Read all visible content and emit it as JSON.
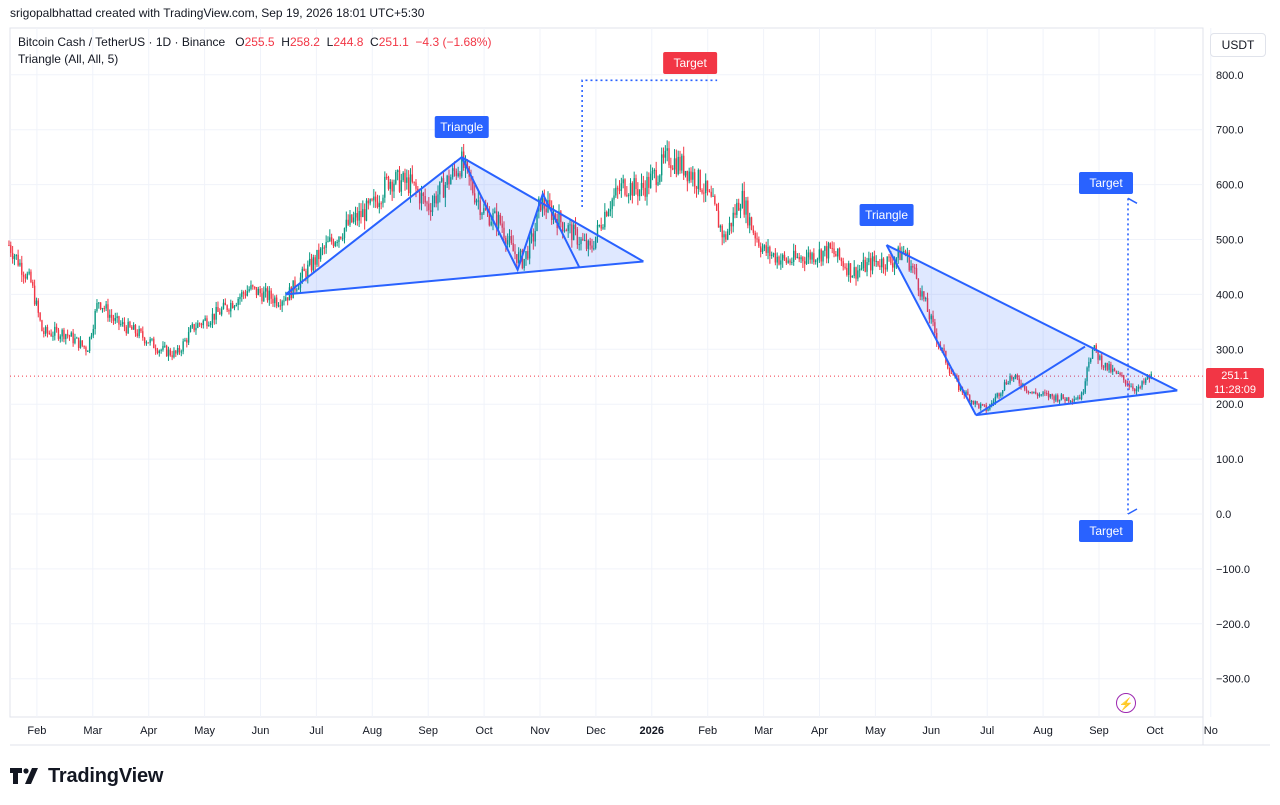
{
  "header": {
    "attribution": "srigopalbhattad created with TradingView.com, Sep 19, 2026 18:01 UTC+5:30"
  },
  "legend": {
    "symbol": "Bitcoin Cash / TetherUS · 1D · Binance",
    "open_label": "O",
    "open": "255.5",
    "high_label": "H",
    "high": "258.2",
    "low_label": "L",
    "low": "244.8",
    "close_label": "C",
    "close": "251.1",
    "change": "−4.3 (−1.68%)",
    "indicator": "Triangle (All, All, 5)"
  },
  "quote_currency": "USDT",
  "last_price": {
    "value": "251.1",
    "countdown": "11:28:09"
  },
  "footer": {
    "brand": "TradingView"
  },
  "colors": {
    "up": "#089981",
    "down": "#f23645",
    "pattern": "#2962ff",
    "pattern_fill": "#2962ff",
    "target_up": "#2962ff",
    "target_red": "#f23645"
  },
  "chart_data": {
    "type": "candlestick",
    "y_ticks": [
      "800.0",
      "700.0",
      "600.0",
      "500.0",
      "400.0",
      "300.0",
      "200.0",
      "100.0",
      "0.0",
      "−100.0",
      "−200.0",
      "−300.0"
    ],
    "ylim": [
      -340,
      880
    ],
    "x_labels": [
      "Feb",
      "Mar",
      "Apr",
      "May",
      "Jun",
      "Jul",
      "Aug",
      "Sep",
      "Oct",
      "Nov",
      "Dec",
      "2026",
      "Feb",
      "Mar",
      "Apr",
      "May",
      "Jun",
      "Jul",
      "Aug",
      "Sep",
      "Oct",
      "No"
    ],
    "x_month_index": [
      1,
      2,
      3,
      4,
      5,
      6,
      7,
      8,
      9,
      10,
      11,
      12,
      13,
      14,
      15,
      16,
      17,
      18,
      19,
      20,
      21,
      22
    ],
    "price_path": [
      [
        0.5,
        490
      ],
      [
        0.9,
        420
      ],
      [
        1.1,
        330
      ],
      [
        1.5,
        330
      ],
      [
        1.9,
        300
      ],
      [
        2.1,
        390
      ],
      [
        2.4,
        350
      ],
      [
        2.8,
        330
      ],
      [
        3.2,
        300
      ],
      [
        3.5,
        290
      ],
      [
        3.8,
        340
      ],
      [
        4.3,
        370
      ],
      [
        4.8,
        410
      ],
      [
        5.3,
        390
      ],
      [
        5.5,
        400
      ],
      [
        5.8,
        440
      ],
      [
        6.2,
        490
      ],
      [
        6.6,
        530
      ],
      [
        7.0,
        560
      ],
      [
        7.3,
        610
      ],
      [
        7.7,
        600
      ],
      [
        8.0,
        560
      ],
      [
        8.3,
        600
      ],
      [
        8.6,
        640
      ],
      [
        8.8,
        590
      ],
      [
        9.0,
        550
      ],
      [
        9.3,
        530
      ],
      [
        9.5,
        480
      ],
      [
        9.7,
        460
      ],
      [
        9.9,
        510
      ],
      [
        10.0,
        570
      ],
      [
        10.3,
        540
      ],
      [
        10.6,
        510
      ],
      [
        10.9,
        480
      ],
      [
        11.2,
        560
      ],
      [
        11.5,
        600
      ],
      [
        11.8,
        590
      ],
      [
        12.0,
        610
      ],
      [
        12.3,
        650
      ],
      [
        12.6,
        630
      ],
      [
        12.9,
        600
      ],
      [
        13.1,
        560
      ],
      [
        13.3,
        500
      ],
      [
        13.6,
        580
      ],
      [
        13.8,
        520
      ],
      [
        14.0,
        480
      ],
      [
        14.4,
        460
      ],
      [
        14.8,
        470
      ],
      [
        15.2,
        480
      ],
      [
        15.6,
        440
      ],
      [
        16.0,
        460
      ],
      [
        16.3,
        460
      ],
      [
        16.5,
        480
      ],
      [
        16.7,
        440
      ],
      [
        16.9,
        380
      ],
      [
        17.1,
        320
      ],
      [
        17.3,
        270
      ],
      [
        17.5,
        230
      ],
      [
        17.8,
        200
      ],
      [
        18.0,
        190
      ],
      [
        18.2,
        220
      ],
      [
        18.4,
        250
      ],
      [
        18.6,
        240
      ],
      [
        18.8,
        220
      ],
      [
        19.1,
        215
      ],
      [
        19.4,
        210
      ],
      [
        19.7,
        215
      ],
      [
        19.8,
        280
      ],
      [
        19.9,
        300
      ],
      [
        20.1,
        270
      ],
      [
        20.3,
        255
      ],
      [
        20.5,
        240
      ],
      [
        20.7,
        225
      ],
      [
        20.85,
        245
      ],
      [
        20.95,
        251
      ]
    ],
    "patterns": [
      {
        "label": "Triangle",
        "points": [
          [
            5.45,
            400
          ],
          [
            8.6,
            650
          ],
          [
            9.6,
            445
          ],
          [
            10.05,
            583
          ],
          [
            10.7,
            450
          ],
          [
            11.85,
            460
          ]
        ],
        "target_label": "Target",
        "target_value": 790,
        "target_color": "red"
      },
      {
        "label": "Triangle",
        "points": [
          [
            16.2,
            490
          ],
          [
            17.8,
            180
          ],
          [
            19.75,
            305
          ],
          [
            21.4,
            225
          ]
        ],
        "target_labels": [
          "Target",
          "Target"
        ],
        "target_up": 575,
        "target_down": 0
      }
    ],
    "current_price": 251.1
  }
}
